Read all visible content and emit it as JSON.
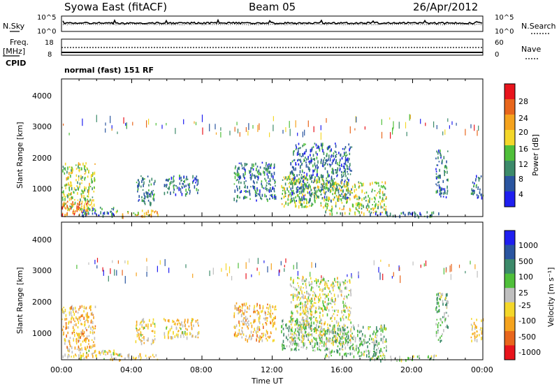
{
  "header": {
    "site": "Syowa East (fitACF)",
    "beam": "Beam 05",
    "date": "26/Apr/2012"
  },
  "noise_panel": {
    "left_label": "N.Sky",
    "right_label": "N.Search",
    "left_ticks": [
      "10^5",
      "10^0"
    ],
    "right_ticks": [
      "10^5",
      "10^0"
    ]
  },
  "freq_panel": {
    "left_label_1": "Freq.",
    "left_label_2": "[MHz]",
    "left_label_3": "CPID",
    "left_ticks": [
      "18",
      "8"
    ],
    "right_ticks": [
      "60",
      "0"
    ],
    "right_label": "Nave",
    "cpid_text": "normal (fast) 151 RF"
  },
  "power_panel": {
    "ylabel": "Slant Range [km]",
    "yticks": [
      "4000",
      "3000",
      "2000",
      "1000"
    ],
    "colorbar_label": "Power [dB]",
    "colorbar_ticks": [
      "28",
      "24",
      "20",
      "16",
      "12",
      "8",
      "4"
    ],
    "colorbar_colors": [
      "#e8141c",
      "#e8661c",
      "#f5a31e",
      "#f4d72a",
      "#4fbf3a",
      "#3c8a6a",
      "#2a55a0",
      "#1f1ff0"
    ]
  },
  "velocity_panel": {
    "ylabel": "Slant Range [km]",
    "yticks": [
      "4000",
      "3000",
      "2000",
      "1000"
    ],
    "colorbar_label": "Velocity [m s⁻¹]",
    "colorbar_ticks": [
      "1000",
      "500",
      "100",
      "25",
      "-25",
      "-100",
      "-500",
      "-1000"
    ],
    "colorbar_colors": [
      "#1f1ff0",
      "#2a55a0",
      "#3c8a6a",
      "#4fbf3a",
      "#bfbfbf",
      "#f4d72a",
      "#f5a31e",
      "#e8661c",
      "#e8141c"
    ]
  },
  "xaxis": {
    "label": "Time UT",
    "ticks": [
      "00:00",
      "04:00",
      "08:00",
      "12:00",
      "16:00",
      "20:00",
      "00:00"
    ]
  },
  "chart_data": [
    {
      "type": "heatmap",
      "title": "Syowa East (fitACF)  Beam 05  26/Apr/2012",
      "xlabel": "Time UT",
      "ylabel": "Slant Range [km]",
      "xlim": [
        0,
        24
      ],
      "ylim": [
        180,
        4500
      ],
      "colorbar": "Power [dB]",
      "zlim": [
        0,
        32
      ],
      "patches": [
        {
          "t": [
            0.0,
            1.9
          ],
          "r": [
            400,
            1900
          ],
          "z": 16
        },
        {
          "t": [
            0.0,
            1.5
          ],
          "r": [
            250,
            700
          ],
          "z": 24
        },
        {
          "t": [
            1.0,
            3.0
          ],
          "r": [
            220,
            500
          ],
          "z": 8
        },
        {
          "t": [
            3.0,
            5.5
          ],
          "r": [
            200,
            400
          ],
          "z": 20
        },
        {
          "t": [
            4.2,
            5.3
          ],
          "r": [
            600,
            1500
          ],
          "z": 8
        },
        {
          "t": [
            5.8,
            7.8
          ],
          "r": [
            900,
            1500
          ],
          "z": 8
        },
        {
          "t": [
            9.8,
            12.2
          ],
          "r": [
            700,
            1900
          ],
          "z": 8
        },
        {
          "t": [
            12.5,
            15.0
          ],
          "r": [
            500,
            1500
          ],
          "z": 16
        },
        {
          "t": [
            13.0,
            16.5
          ],
          "r": [
            700,
            2500
          ],
          "z": 8
        },
        {
          "t": [
            15.0,
            18.5
          ],
          "r": [
            300,
            1300
          ],
          "z": 16
        },
        {
          "t": [
            17.5,
            21.5
          ],
          "r": [
            200,
            350
          ],
          "z": 8
        },
        {
          "t": [
            21.3,
            22.0
          ],
          "r": [
            800,
            2300
          ],
          "z": 8
        },
        {
          "t": [
            23.3,
            24.0
          ],
          "r": [
            800,
            1500
          ],
          "z": 8
        }
      ]
    },
    {
      "type": "heatmap",
      "title": "Syowa East (fitACF)  Beam 05  26/Apr/2012",
      "xlabel": "Time UT",
      "ylabel": "Slant Range [km]",
      "xlim": [
        0,
        24
      ],
      "ylim": [
        180,
        4500
      ],
      "colorbar": "Velocity [m s^-1]",
      "zlim": [
        -1000,
        1000
      ],
      "patches": [
        {
          "t": [
            0.0,
            1.9
          ],
          "r": [
            300,
            1900
          ],
          "z": -300
        },
        {
          "t": [
            1.0,
            3.0
          ],
          "r": [
            220,
            500
          ],
          "z": -100
        },
        {
          "t": [
            3.0,
            5.5
          ],
          "r": [
            200,
            400
          ],
          "z": -200
        },
        {
          "t": [
            4.2,
            5.3
          ],
          "r": [
            700,
            1500
          ],
          "z": -200
        },
        {
          "t": [
            5.8,
            7.8
          ],
          "r": [
            900,
            1500
          ],
          "z": -200
        },
        {
          "t": [
            9.8,
            12.2
          ],
          "r": [
            800,
            2000
          ],
          "z": -300
        },
        {
          "t": [
            12.5,
            15.0
          ],
          "r": [
            500,
            1500
          ],
          "z": 200
        },
        {
          "t": [
            13.0,
            16.5
          ],
          "r": [
            700,
            2800
          ],
          "z": -50
        },
        {
          "t": [
            15.0,
            18.5
          ],
          "r": [
            300,
            1300
          ],
          "z": 200
        },
        {
          "t": [
            17.5,
            21.5
          ],
          "r": [
            200,
            350
          ],
          "z": 100
        },
        {
          "t": [
            21.3,
            22.0
          ],
          "r": [
            800,
            2300
          ],
          "z": 200
        },
        {
          "t": [
            23.3,
            24.0
          ],
          "r": [
            800,
            1500
          ],
          "z": -200
        }
      ]
    }
  ]
}
